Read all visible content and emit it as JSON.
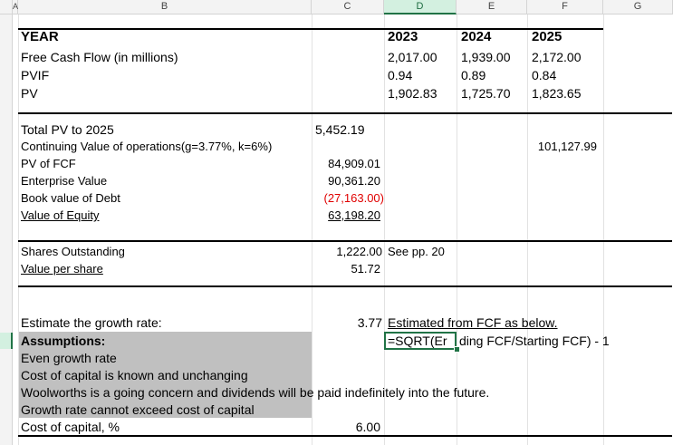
{
  "columns": {
    "a": "A",
    "b": "B",
    "c": "C",
    "d": "D",
    "e": "E",
    "f": "F",
    "g": "G"
  },
  "table": {
    "header": {
      "label": "YEAR",
      "y1": "2023",
      "y2": "2024",
      "y3": "2025"
    },
    "fcf": {
      "label": "Free Cash Flow (in millions)",
      "v1": "2,017.00",
      "v2": "1,939.00",
      "v3": "2,172.00"
    },
    "pvif": {
      "label": "PVIF",
      "v1": "0.94",
      "v2": "0.89",
      "v3": "0.84"
    },
    "pv": {
      "label": "PV",
      "v1": "1,902.83",
      "v2": "1,725.70",
      "v3": "1,823.65"
    }
  },
  "valuation": {
    "total_pv": {
      "label": "Total PV to 2025",
      "value": "5,452.19"
    },
    "continuing": {
      "label": "Continuing Value of operations(g=3.77%, k=6%)",
      "value": "101,127.99"
    },
    "pv_fcf": {
      "label": "PV of FCF",
      "value": "84,909.01"
    },
    "ev": {
      "label": "Enterprise Value",
      "value": "90,361.20"
    },
    "debt": {
      "label": "Book value of Debt",
      "value": "(27,163.00)"
    },
    "equity": {
      "label": "Value of Equity",
      "value": "63,198.20"
    }
  },
  "shares": {
    "outstanding": {
      "label": "Shares Outstanding",
      "value": "1,222.00",
      "note": "See pp. 20"
    },
    "per_share": {
      "label": "Value per share",
      "value": "51.72"
    }
  },
  "growth": {
    "label": "Estimate the growth rate:",
    "value": "3.77",
    "note": "Estimated from FCF as below.",
    "formula_a": "=SQRT(Er",
    "formula_b": "ding FCF/Starting FCF) - 1"
  },
  "assumptions": {
    "title": "Assumptions:",
    "items": [
      "Even growth rate",
      "Cost of capital is known and unchanging",
      "Woolworths is a going concern and dividends will be paid indefinitely into the future.",
      "Growth rate cannot exceed cost of capital"
    ]
  },
  "cost": {
    "label": "Cost of capital, %",
    "value": "6.00"
  },
  "colors": {
    "selection": "#217346",
    "negative": "#e00000",
    "shade": "#c0c0c0"
  }
}
